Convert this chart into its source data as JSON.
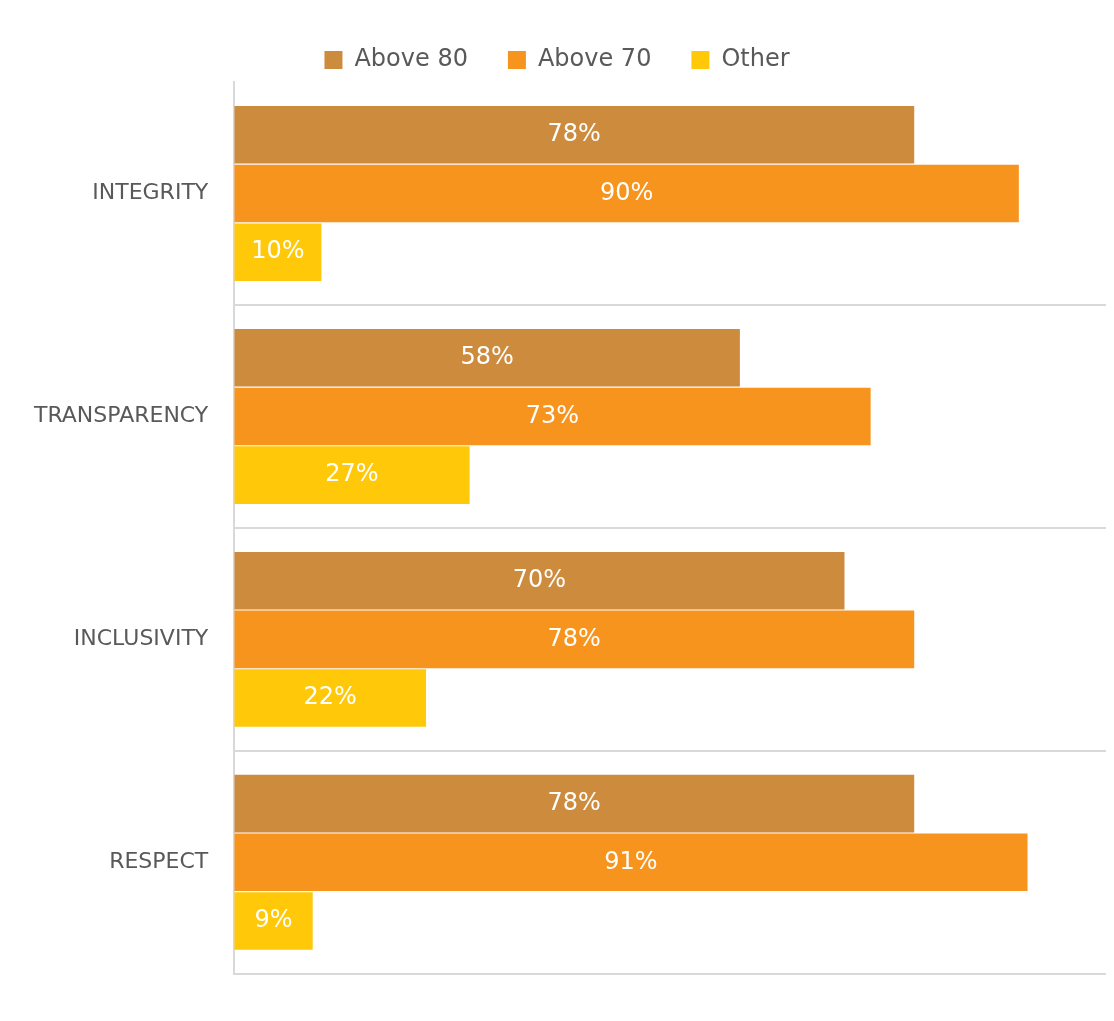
{
  "chart_data": {
    "type": "bar",
    "orientation": "horizontal",
    "categories": [
      "INTEGRITY",
      "TRANSPARENCY",
      "INCLUSIVITY",
      "RESPECT"
    ],
    "series": [
      {
        "name": "Above 80",
        "color": "#cd8b3e",
        "values": [
          78,
          58,
          70,
          78
        ],
        "value_labels": [
          "78%",
          "58%",
          "70%",
          "78%"
        ]
      },
      {
        "name": "Above 70",
        "color": "#f7941d",
        "values": [
          90,
          73,
          78,
          91
        ],
        "value_labels": [
          "90%",
          "73%",
          "78%",
          "91%"
        ]
      },
      {
        "name": "Other",
        "color": "#ffc90a",
        "values": [
          10,
          27,
          22,
          9
        ],
        "value_labels": [
          "10%",
          "27%",
          "22%",
          "9%"
        ]
      }
    ],
    "xlim": [
      0,
      100
    ],
    "grid": "y",
    "legend": "top",
    "tick_labels": "y"
  }
}
